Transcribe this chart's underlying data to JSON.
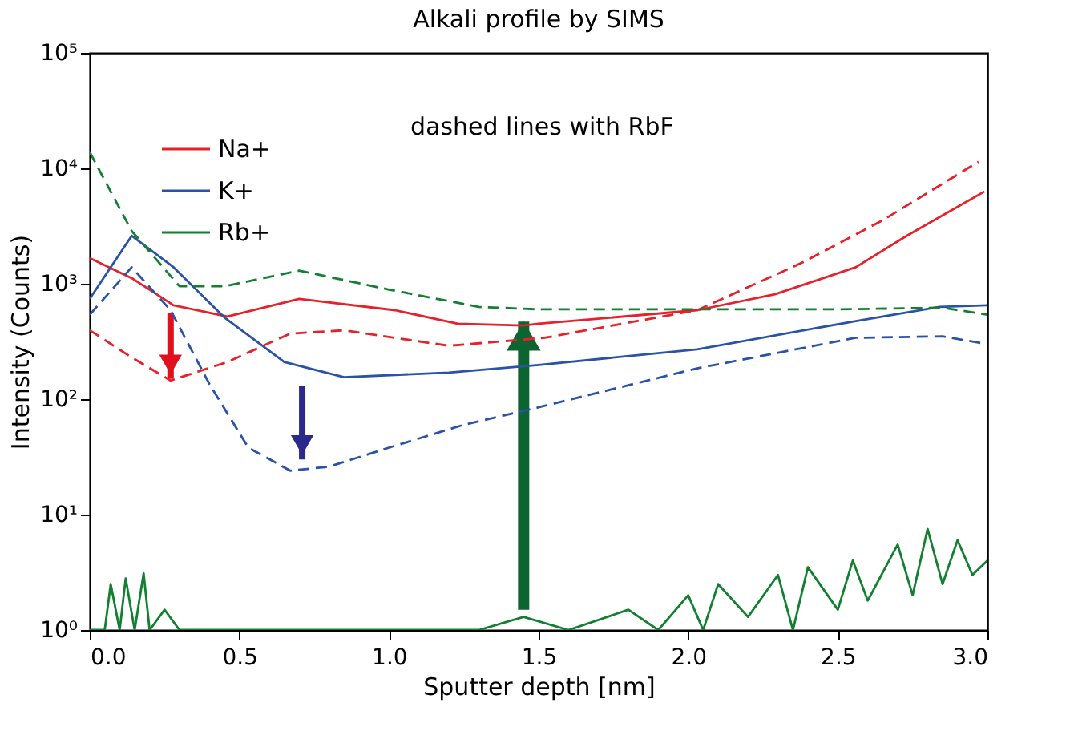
{
  "chart_data": {
    "type": "line",
    "title": "Alkali profile by SIMS",
    "xlabel": "Sputter depth [nm]",
    "ylabel": "Intensity (Counts)",
    "log": "y",
    "grid": false,
    "legend": "top left",
    "marker": "none",
    "xlim": [
      0,
      3
    ],
    "xticks": [
      {
        "value": 0,
        "label": "0.0"
      },
      {
        "value": 0.5,
        "label": "0.5"
      },
      {
        "value": 1,
        "label": "1.0"
      },
      {
        "value": 1.5,
        "label": "1.5"
      },
      {
        "value": 2,
        "label": "2.0"
      },
      {
        "value": 2.5,
        "label": "2.5"
      },
      {
        "value": 3,
        "label": "3.0"
      }
    ],
    "ylim": [
      1,
      100000
    ],
    "yticks": [
      {
        "value": 1,
        "label": "10⁰"
      },
      {
        "value": 10,
        "label": "10¹"
      },
      {
        "value": 100,
        "label": "10²"
      },
      {
        "value": 1000,
        "label": "10³"
      },
      {
        "value": 10000,
        "label": "10⁴"
      },
      {
        "value": 100000,
        "label": "10⁵"
      }
    ],
    "annotations": [
      "dashed lines with RbF"
    ],
    "series": [
      {
        "name": "Na+",
        "color": "#e8202a",
        "line_style": "solid",
        "x": [
          0,
          0.14,
          0.28,
          0.46,
          0.7,
          1.02,
          1.23,
          1.45,
          1.5,
          2.03,
          2.29,
          2.56,
          2.73,
          2.99
        ],
        "values": [
          1670,
          1120,
          650,
          520,
          740,
          590,
          450,
          435,
          450,
          590,
          810,
          1390,
          2600,
          6300
        ]
      },
      {
        "name": "K+",
        "color": "#2a52a8",
        "line_style": "solid",
        "x": [
          0,
          0.14,
          0.28,
          0.45,
          0.65,
          0.85,
          1.2,
          1.5,
          2.03,
          2.56,
          2.84,
          3.0
        ],
        "values": [
          740,
          2600,
          1390,
          510,
          210,
          155,
          170,
          198,
          270,
          475,
          630,
          650
        ]
      },
      {
        "name": "Rb+",
        "color": "#128030",
        "line_style": "solid",
        "x": [
          0,
          0.05,
          0.07,
          0.1,
          0.12,
          0.15,
          0.18,
          0.2,
          0.25,
          0.3,
          0.5,
          0.7,
          1.0,
          1.3,
          1.45,
          1.6,
          1.8,
          1.9,
          2.0,
          2.05,
          2.1,
          2.2,
          2.3,
          2.35,
          2.4,
          2.5,
          2.55,
          2.6,
          2.7,
          2.75,
          2.8,
          2.85,
          2.9,
          2.95,
          3.0
        ],
        "values": [
          1,
          1,
          2.5,
          1,
          2.8,
          1,
          3.1,
          1,
          1.5,
          1,
          1,
          1,
          1,
          1,
          1.3,
          1,
          1.5,
          1,
          2,
          1,
          2.5,
          1.3,
          3,
          1,
          3.5,
          1.5,
          4,
          1.8,
          5.5,
          2,
          7.5,
          2.5,
          6,
          3,
          4
        ]
      },
      {
        "color": "#e8202a",
        "line_style": "dashed",
        "x": [
          0,
          0.14,
          0.27,
          0.46,
          0.67,
          0.85,
          1.2,
          1.52,
          2.03,
          2.38,
          2.65,
          2.97
        ],
        "values": [
          395,
          230,
          145,
          210,
          370,
          395,
          290,
          340,
          590,
          1520,
          3550,
          11400
        ]
      },
      {
        "color": "#2a52a8",
        "line_style": "dashed",
        "x": [
          0,
          0.14,
          0.27,
          0.4,
          0.53,
          0.67,
          0.8,
          1.0,
          1.25,
          1.5,
          2.03,
          2.56,
          2.85,
          3.0
        ],
        "values": [
          540,
          1390,
          590,
          135,
          38,
          24,
          26,
          38,
          60,
          85,
          185,
          340,
          350,
          300
        ]
      },
      {
        "color": "#128030",
        "line_style": "dashed",
        "x": [
          0,
          0.14,
          0.3,
          0.45,
          0.7,
          1.0,
          1.3,
          1.5,
          2.5,
          2.85,
          3.0
        ],
        "values": [
          13800,
          2870,
          950,
          950,
          1300,
          890,
          630,
          600,
          600,
          620,
          540
        ]
      }
    ]
  }
}
